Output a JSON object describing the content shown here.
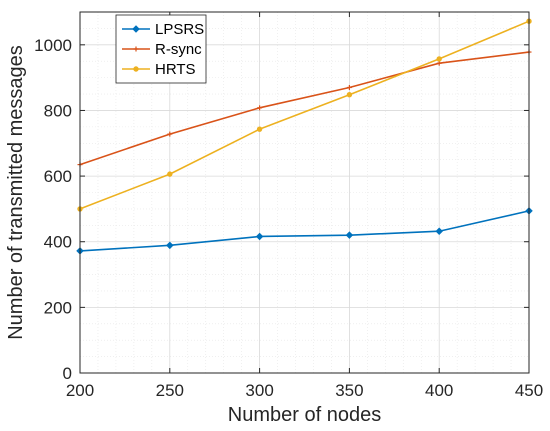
{
  "chart_data": {
    "type": "line",
    "title": "",
    "xlabel": "Number of nodes",
    "ylabel": "Number of transmitted messages",
    "xlim": [
      200,
      450
    ],
    "ylim": [
      0,
      1100
    ],
    "x_ticks": [
      200,
      250,
      300,
      350,
      400,
      450
    ],
    "y_ticks": [
      0,
      200,
      400,
      600,
      800,
      1000
    ],
    "grid": true,
    "minor_grid": true,
    "legend_position": "top-left",
    "x": [
      200,
      250,
      300,
      350,
      400,
      450
    ],
    "series": [
      {
        "name": "LPSRS",
        "color": "#0072BD",
        "marker": "diamond",
        "values": [
          372,
          389,
          416,
          420,
          432,
          494
        ]
      },
      {
        "name": "R-sync",
        "color": "#D95319",
        "marker": "plus",
        "values": [
          635,
          728,
          808,
          870,
          944,
          978
        ]
      },
      {
        "name": "HRTS",
        "color": "#EDB120",
        "marker": "circle",
        "values": [
          500,
          606,
          743,
          848,
          957,
          1072
        ]
      }
    ]
  }
}
